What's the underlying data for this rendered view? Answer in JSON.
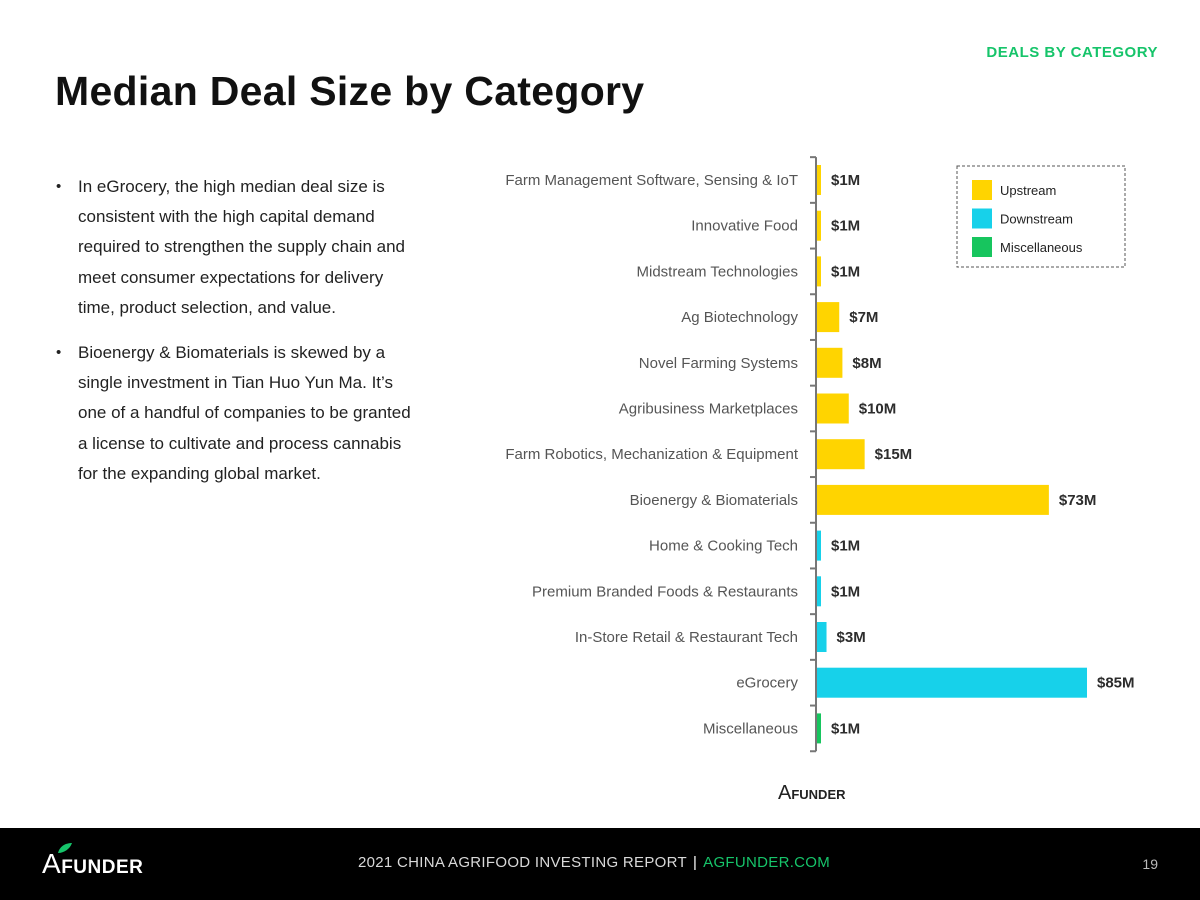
{
  "header": {
    "section": "DEALS BY CATEGORY",
    "title": "Median Deal Size by Category"
  },
  "bullets": [
    "In eGrocery, the high median deal size is consistent with the high capital demand required to strengthen the supply chain and meet consumer expectations for delivery time, product selection, and value.",
    "Bioenergy & Biomaterials is skewed by a single investment in Tian Huo Yun Ma. It’s one of a handful of companies to be granted a license to cultivate and process cannabis for the expanding global market."
  ],
  "colors": {
    "upstream": "#ffd400",
    "downstream": "#17d1ea",
    "misc": "#17c55e",
    "accent": "#16c46a"
  },
  "chart_data": {
    "type": "bar",
    "orientation": "horizontal",
    "title": "Median Deal Size by Category",
    "unit": "$M",
    "xlim": [
      0,
      85
    ],
    "categories": [
      "Farm Management Software, Sensing & IoT",
      "Innovative Food",
      "Midstream Technologies",
      "Ag Biotechnology",
      "Novel Farming Systems",
      "Agribusiness Marketplaces",
      "Farm Robotics, Mechanization & Equipment",
      "Bioenergy & Biomaterials",
      "Home & Cooking Tech",
      "Premium Branded Foods & Restaurants",
      "In-Store Retail & Restaurant Tech",
      "eGrocery",
      "Miscellaneous"
    ],
    "values": [
      1,
      1,
      1,
      7,
      8,
      10,
      15,
      73,
      1,
      1,
      3,
      85,
      1
    ],
    "labels": [
      "$1M",
      "$1M",
      "$1M",
      "$7M",
      "$8M",
      "$10M",
      "$15M",
      "$73M",
      "$1M",
      "$1M",
      "$3M",
      "$85M",
      "$1M"
    ],
    "groups": [
      "upstream",
      "upstream",
      "upstream",
      "upstream",
      "upstream",
      "upstream",
      "upstream",
      "upstream",
      "downstream",
      "downstream",
      "downstream",
      "downstream",
      "misc"
    ],
    "legend": [
      {
        "key": "upstream",
        "label": "Upstream"
      },
      {
        "key": "downstream",
        "label": "Downstream"
      },
      {
        "key": "misc",
        "label": "Miscellaneous"
      }
    ],
    "legend_position": "top-right"
  },
  "chart_logo": {
    "a": "A",
    "rest": "FUNDER"
  },
  "footer": {
    "logo_a": "A",
    "logo_rest": "FUNDER",
    "report": "2021 CHINA AGRIFOOD INVESTING REPORT",
    "separator": "|",
    "site": "AGFUNDER.COM",
    "page": "19"
  }
}
